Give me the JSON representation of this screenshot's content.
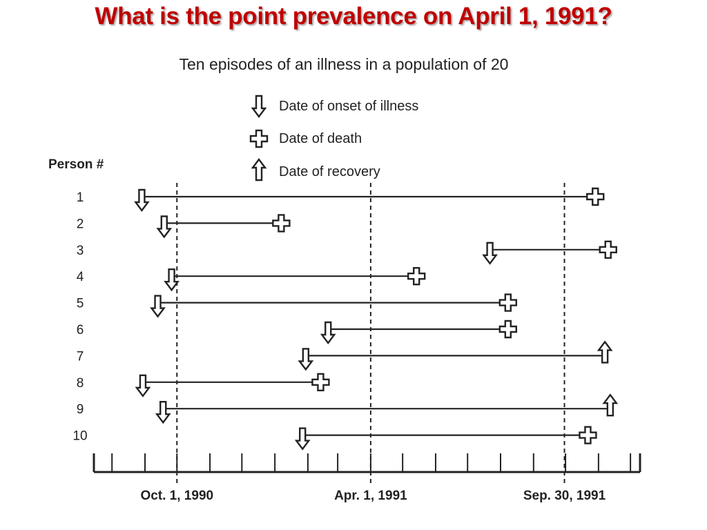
{
  "slide": {
    "title": "What is the point prevalence on April 1, 1991?"
  },
  "diagram": {
    "subtitle": "Ten episodes of an illness in a population of 20",
    "legend": [
      {
        "symbol": "onset",
        "label": "Date of onset of illness"
      },
      {
        "symbol": "death",
        "label": "Date of death"
      },
      {
        "symbol": "recovery",
        "label": "Date of recovery"
      }
    ],
    "row_header": "Person #",
    "x_axis": {
      "range": [
        "1990-07-15",
        "1991-12-10"
      ],
      "tick_interval": "monthly",
      "labeled_ticks": [
        {
          "date": "1990-10-01",
          "label": "Oct. 1, 1990"
        },
        {
          "date": "1991-04-01",
          "label": "Apr. 1, 1991"
        },
        {
          "date": "1991-09-30",
          "label": "Sep. 30, 1991"
        }
      ]
    },
    "reference_lines": [
      "1990-10-01",
      "1991-04-01",
      "1991-09-30"
    ],
    "episodes": [
      {
        "person": "1",
        "onset": "1990-08-29",
        "end": "1991-10-29",
        "outcome": "death"
      },
      {
        "person": "2",
        "onset": "1990-09-19",
        "end": "1991-01-07",
        "outcome": "death"
      },
      {
        "person": "3",
        "onset": "1991-07-22",
        "end": "1991-11-10",
        "outcome": "death"
      },
      {
        "person": "4",
        "onset": "1990-09-26",
        "end": "1991-05-14",
        "outcome": "death"
      },
      {
        "person": "5",
        "onset": "1990-09-13",
        "end": "1991-08-08",
        "outcome": "death"
      },
      {
        "person": "6",
        "onset": "1991-02-20",
        "end": "1991-08-08",
        "outcome": "death"
      },
      {
        "person": "7",
        "onset": "1991-01-30",
        "end": "1991-11-07",
        "outcome": "recovery"
      },
      {
        "person": "8",
        "onset": "1990-08-30",
        "end": "1991-02-13",
        "outcome": "death"
      },
      {
        "person": "9",
        "onset": "1990-09-18",
        "end": "1991-11-12",
        "outcome": "recovery"
      },
      {
        "person": "10",
        "onset": "1991-01-27",
        "end": "1991-10-22",
        "outcome": "death"
      }
    ],
    "colors": {
      "title": "#c00000",
      "ink": "#222222"
    }
  }
}
